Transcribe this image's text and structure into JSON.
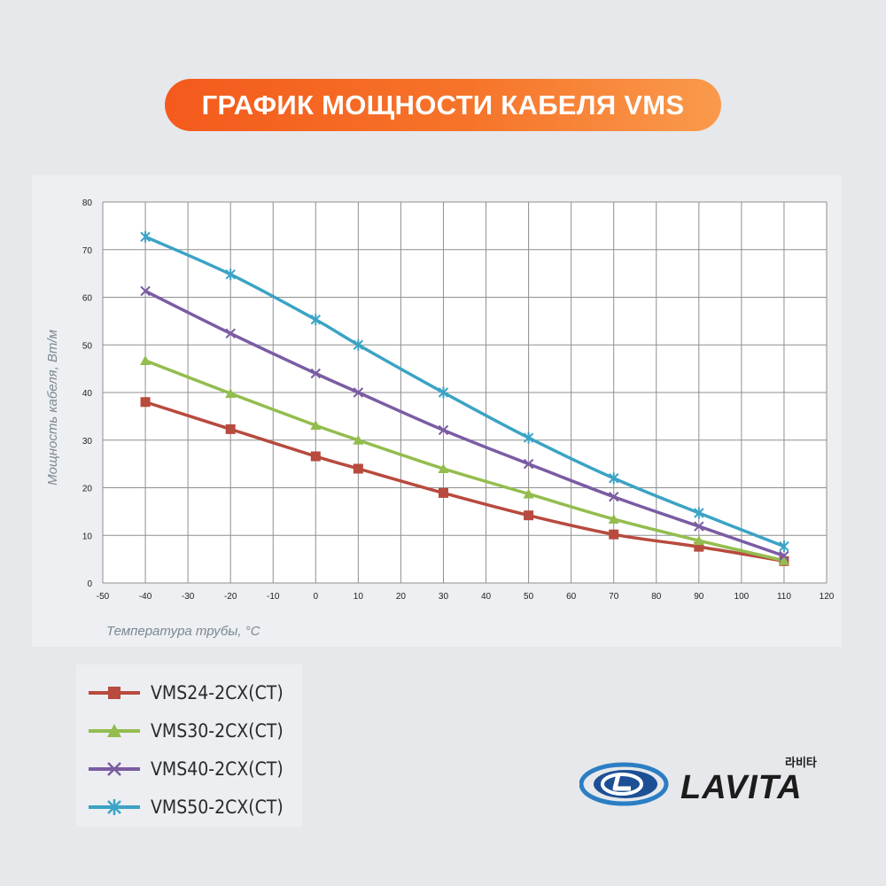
{
  "header": {
    "title": "ГРАФИК МОЩНОСТИ КАБЕЛЯ VMS"
  },
  "colors": {
    "accent": "#f45a1c",
    "grid": "#8f8f8f",
    "vms24": "#b84a3e",
    "vms30": "#93bd4e",
    "vms40": "#7a5ca3",
    "vms50": "#3ba3c5"
  },
  "logo": {
    "text": "LAVITA",
    "korean": "라비타"
  },
  "chart_data": {
    "type": "line",
    "xlabel": "Температура трубы, °C",
    "ylabel": "Мощность кабеля, Вт/м",
    "xlim": [
      -50,
      120
    ],
    "ylim": [
      0,
      80
    ],
    "xticks": [
      -50,
      -40,
      -30,
      -20,
      -10,
      0,
      10,
      20,
      30,
      40,
      50,
      60,
      70,
      80,
      90,
      100,
      110,
      120
    ],
    "yticks": [
      0,
      10,
      20,
      30,
      40,
      50,
      60,
      70,
      80
    ],
    "grid": true,
    "legend_position": "bottom-left",
    "x": [
      -40,
      -20,
      0,
      10,
      30,
      50,
      70,
      90,
      110
    ],
    "series": [
      {
        "name": "VMS24-2CX(CT)",
        "marker": "square",
        "color": "#b84a3e",
        "values": [
          38,
          32.3,
          26.6,
          24,
          18.9,
          14.2,
          10.2,
          7.6,
          4.6
        ]
      },
      {
        "name": "VMS30-2CX(CT)",
        "marker": "triangle",
        "color": "#93bd4e",
        "values": [
          46.7,
          39.8,
          33.1,
          30,
          24,
          18.7,
          13.4,
          8.9,
          4.7
        ]
      },
      {
        "name": "VMS40-2CX(CT)",
        "marker": "x",
        "color": "#7a5ca3",
        "values": [
          61.3,
          52.4,
          44,
          40,
          32.1,
          25,
          18.1,
          11.9,
          5.7
        ]
      },
      {
        "name": "VMS50-2CX(CT)",
        "marker": "star",
        "color": "#3ba3c5",
        "values": [
          72.7,
          64.8,
          55.3,
          50,
          40,
          30.5,
          22,
          14.7,
          7.7
        ]
      }
    ]
  }
}
